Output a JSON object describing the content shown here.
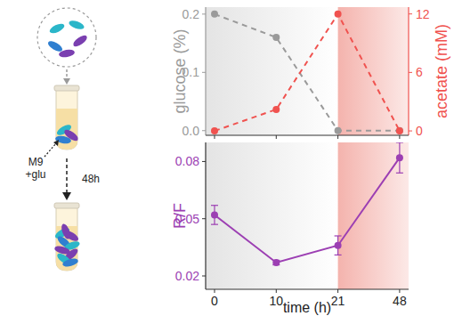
{
  "illustration": {
    "medium": [
      "M9",
      "+glu"
    ],
    "duration": "48h"
  },
  "chart_data": [
    {
      "type": "line",
      "categories": [
        "0",
        "10",
        "21",
        "48"
      ],
      "ylim": [
        -0.008,
        0.212
      ],
      "yticks": [
        {
          "value": 0,
          "label": "0.0"
        },
        0.1,
        0.2
      ],
      "y2lim": [
        -0.45,
        12.7
      ],
      "y2ticks": [
        0,
        6,
        12
      ],
      "tick_labels": "y",
      "series": [
        {
          "name": "glucose (%)",
          "color": "#9a9a9a",
          "values": [
            0.2,
            0.16,
            0,
            0
          ],
          "line_style": "dashed",
          "marker": "circle"
        },
        {
          "name": "acetate (mM)",
          "color": "#f0524f",
          "values": [
            0,
            2.2,
            12,
            0
          ],
          "axis": "y2",
          "line_style": "dashed",
          "marker": "circle"
        }
      ]
    },
    {
      "type": "line",
      "categories": [
        "0",
        "10",
        "21",
        "48"
      ],
      "x_label": "time (h)",
      "ylim": [
        0.013,
        0.09
      ],
      "yticks": [
        0.02,
        0.05,
        0.08
      ],
      "series": [
        {
          "name": "R/F",
          "color": "#9c3fb3",
          "values": [
            0.052,
            0.027,
            0.036,
            0.082
          ],
          "errors": [
            0.005,
            0.0012,
            0.005,
            0.008
          ],
          "line_style": "solid",
          "marker": "circle"
        }
      ]
    }
  ]
}
